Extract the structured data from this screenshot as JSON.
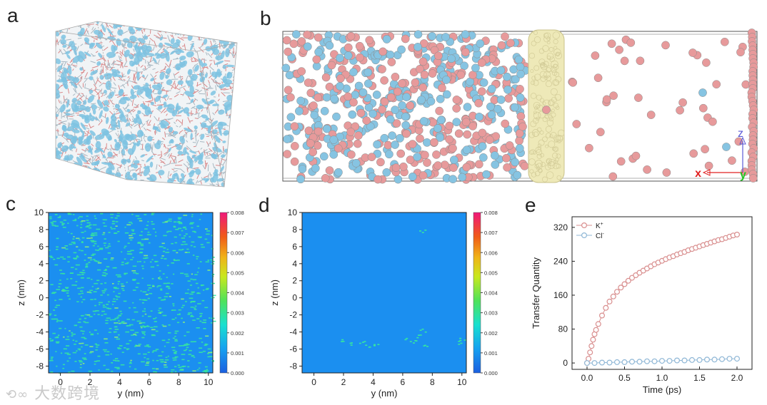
{
  "panels": {
    "a": "a",
    "b": "b",
    "c": "c",
    "d": "d",
    "e": "e"
  },
  "panel_b": {
    "axis_z": "z",
    "axis_x": "x",
    "axis_y": "y"
  },
  "colors": {
    "cation": "#e79a9b",
    "anion": "#86c4e2",
    "membrane": "#eee9b8",
    "heat_bg": "#1b8ff0",
    "heat_spot": "#35e6a0"
  },
  "colorbar": {
    "ticks": [
      "0.008",
      "0.007",
      "0.006",
      "0.005",
      "0.004",
      "0.003",
      "0.002",
      "0.001",
      "0.000"
    ]
  },
  "chart_data": [
    {
      "panel": "c",
      "type": "heatmap",
      "xlabel": "y (nm)",
      "ylabel": "z (nm)",
      "xlim": [
        -0.8,
        10.3
      ],
      "ylim": [
        -8.8,
        10
      ],
      "xticks": [
        "0",
        "2",
        "4",
        "6",
        "8",
        "10"
      ],
      "yticks": [
        "10",
        "8",
        "6",
        "4",
        "2",
        "0",
        "-2",
        "-4",
        "-6",
        "-8"
      ],
      "colorbar_range": [
        0.0,
        0.008
      ],
      "density": "high"
    },
    {
      "panel": "d",
      "type": "heatmap",
      "xlabel": "y (nm)",
      "ylabel": "z (nm)",
      "xlim": [
        -0.8,
        10.3
      ],
      "ylim": [
        -8.8,
        10
      ],
      "xticks": [
        "0",
        "2",
        "4",
        "6",
        "8",
        "10"
      ],
      "yticks": [
        "10",
        "8",
        "6",
        "4",
        "2",
        "0",
        "-2",
        "-4",
        "-6",
        "-8"
      ],
      "colorbar_range": [
        0.0,
        0.008
      ],
      "density": "low"
    },
    {
      "panel": "e",
      "type": "scatter",
      "xlabel": "Time (ps)",
      "ylabel": "Transfer Quantity",
      "xlim": [
        -0.2,
        2.2
      ],
      "ylim": [
        -15,
        345
      ],
      "xticks": [
        "0.0",
        "0.5",
        "1.0",
        "1.5",
        "2.0"
      ],
      "yticks": [
        "0",
        "80",
        "160",
        "240",
        "320"
      ],
      "series": [
        {
          "name": "K+",
          "legend_main": "K",
          "legend_sup": "+",
          "color": "#d98f8f",
          "x": [
            0.0,
            0.02,
            0.04,
            0.06,
            0.08,
            0.1,
            0.12,
            0.15,
            0.2,
            0.25,
            0.3,
            0.35,
            0.4,
            0.45,
            0.5,
            0.55,
            0.6,
            0.65,
            0.7,
            0.75,
            0.8,
            0.85,
            0.9,
            0.95,
            1.0,
            1.05,
            1.1,
            1.15,
            1.2,
            1.25,
            1.3,
            1.35,
            1.4,
            1.45,
            1.5,
            1.55,
            1.6,
            1.65,
            1.7,
            1.75,
            1.8,
            1.85,
            1.9,
            1.95,
            2.0
          ],
          "y": [
            0,
            10,
            25,
            40,
            55,
            68,
            78,
            92,
            112,
            130,
            145,
            157,
            168,
            178,
            186,
            194,
            201,
            207,
            213,
            218,
            223,
            228,
            233,
            237,
            241,
            245,
            249,
            252,
            256,
            259,
            262,
            266,
            269,
            272,
            275,
            278,
            281,
            284,
            287,
            290,
            292,
            295,
            298,
            301,
            303
          ]
        },
        {
          "name": "Cl-",
          "legend_main": "Cl",
          "legend_sup": "-",
          "color": "#8fb7d6",
          "x": [
            0.0,
            0.1,
            0.2,
            0.3,
            0.4,
            0.5,
            0.6,
            0.7,
            0.8,
            0.9,
            1.0,
            1.1,
            1.2,
            1.3,
            1.4,
            1.5,
            1.6,
            1.7,
            1.8,
            1.9,
            2.0
          ],
          "y": [
            0,
            0,
            1,
            1,
            2,
            2,
            3,
            3,
            4,
            4,
            5,
            5,
            6,
            6,
            7,
            7,
            8,
            8,
            9,
            10,
            10
          ]
        }
      ]
    }
  ],
  "watermark": "大数跨境"
}
